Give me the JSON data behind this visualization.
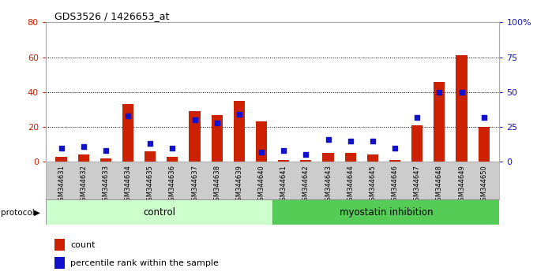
{
  "title": "GDS3526 / 1426653_at",
  "samples": [
    "GSM344631",
    "GSM344632",
    "GSM344633",
    "GSM344634",
    "GSM344635",
    "GSM344636",
    "GSM344637",
    "GSM344638",
    "GSM344639",
    "GSM344640",
    "GSM344641",
    "GSM344642",
    "GSM344643",
    "GSM344644",
    "GSM344645",
    "GSM344646",
    "GSM344647",
    "GSM344648",
    "GSM344649",
    "GSM344650"
  ],
  "count_values": [
    3,
    4,
    2,
    33,
    6,
    3,
    29,
    27,
    35,
    23,
    1,
    1,
    5,
    5,
    4,
    1,
    21,
    46,
    61,
    20
  ],
  "percentile_values": [
    10,
    11,
    8,
    33,
    13,
    10,
    30,
    28,
    34,
    7,
    8,
    5,
    16,
    15,
    15,
    10,
    32,
    50,
    50,
    32
  ],
  "n_control": 10,
  "n_treatment": 10,
  "control_label": "control",
  "treatment_label": "myostatin inhibition",
  "protocol_label": "protocol",
  "bar_color": "#cc2200",
  "dot_color": "#1111cc",
  "control_bg": "#ccffcc",
  "treatment_bg": "#55cc55",
  "ylim_left": [
    0,
    80
  ],
  "ylim_right": [
    0,
    100
  ],
  "yticks_left": [
    0,
    20,
    40,
    60,
    80
  ],
  "yticks_right": [
    0,
    25,
    50,
    75,
    100
  ],
  "legend_count_label": "count",
  "legend_percentile_label": "percentile rank within the sample",
  "bar_width": 0.5,
  "plot_bg": "#ffffff",
  "axis_color_left": "#cc2200",
  "axis_color_right": "#1111cc"
}
